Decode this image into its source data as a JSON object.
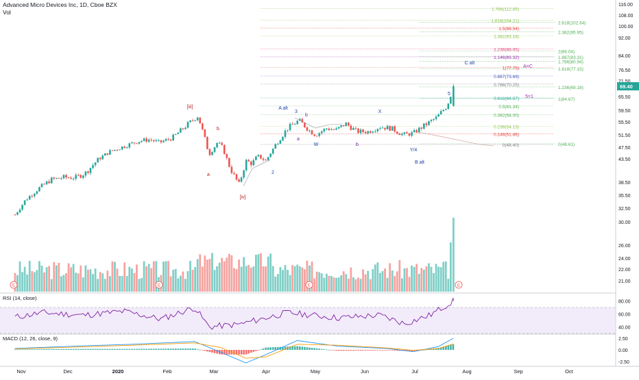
{
  "header": {
    "title": "Advanced Micro Devices Inc, 1D, Cboe BZX",
    "volume_label": "Vol"
  },
  "chart_data": [
    {
      "type": "candlestick",
      "panel": "price",
      "last_price": "69.40",
      "y_axis_ticks": [
        "116.00",
        "108.00",
        "100.00",
        "92.00",
        "84.00",
        "76.50",
        "71.50",
        "65.50",
        "59.50",
        "55.50",
        "51.50",
        "47.50",
        "43.50",
        "38.50",
        "35.50",
        "32.50"
      ],
      "x_axis_ticks": [
        "Nov",
        "Dec",
        "2020",
        "Feb",
        "Mar",
        "Apr",
        "May",
        "Jun",
        "Jul",
        "Aug",
        "Sep",
        "Oct"
      ],
      "price_path": [
        {
          "date": "Oct 28",
          "v": 31.0
        },
        {
          "date": "Nov 4",
          "v": 34.5
        },
        {
          "date": "Nov 12",
          "v": 37.0
        },
        {
          "date": "Nov 20",
          "v": 39.0
        },
        {
          "date": "Nov 28",
          "v": 39.5
        },
        {
          "date": "Dec 6",
          "v": 39.5
        },
        {
          "date": "Dec 12",
          "v": 40.5
        },
        {
          "date": "Dec 20",
          "v": 43.5
        },
        {
          "date": "Dec 27",
          "v": 46.0
        },
        {
          "date": "Jan 6",
          "v": 48.0
        },
        {
          "date": "Jan 14",
          "v": 49.5
        },
        {
          "date": "Jan 21",
          "v": 50.0
        },
        {
          "date": "Jan 27",
          "v": 49.0
        },
        {
          "date": "Feb 4",
          "v": 50.5
        },
        {
          "date": "Feb 12",
          "v": 54.0
        },
        {
          "date": "Feb 20",
          "v": 57.5
        },
        {
          "date": "Feb 24",
          "v": 51.0
        },
        {
          "date": "Feb 27",
          "v": 45.0
        },
        {
          "date": "Mar 3",
          "v": 49.0
        },
        {
          "date": "Mar 6",
          "v": 47.5
        },
        {
          "date": "Mar 9",
          "v": 43.0
        },
        {
          "date": "Mar 12",
          "v": 40.5
        },
        {
          "date": "Mar 16",
          "v": 38.0
        },
        {
          "date": "Mar 20",
          "v": 43.0
        },
        {
          "date": "Mar 24",
          "v": 42.5
        },
        {
          "date": "Mar 27",
          "v": 44.5
        },
        {
          "date": "Apr 1",
          "v": 43.0
        },
        {
          "date": "Apr 7",
          "v": 48.5
        },
        {
          "date": "Apr 14",
          "v": 53.5
        },
        {
          "date": "Apr 21",
          "v": 56.0
        },
        {
          "date": "Apr 27",
          "v": 53.0
        },
        {
          "date": "May 1",
          "v": 51.5
        },
        {
          "date": "May 8",
          "v": 53.5
        },
        {
          "date": "May 14",
          "v": 53.0
        },
        {
          "date": "May 20",
          "v": 55.0
        },
        {
          "date": "May 27",
          "v": 52.5
        },
        {
          "date": "Jun 3",
          "v": 52.5
        },
        {
          "date": "Jun 10",
          "v": 54.0
        },
        {
          "date": "Jun 17",
          "v": 53.5
        },
        {
          "date": "Jun 24",
          "v": 51.5
        },
        {
          "date": "Jun 30",
          "v": 52.0
        },
        {
          "date": "Jul 7",
          "v": 54.5
        },
        {
          "date": "Jul 14",
          "v": 57.0
        },
        {
          "date": "Jul 20",
          "v": 61.0
        },
        {
          "date": "Jul 24",
          "v": 69.4
        }
      ],
      "fib_levels": [
        {
          "label": "1.786(112.85)",
          "price": 112.85,
          "color": "#8bc34a"
        },
        {
          "label": "1.618(104.21)",
          "price": 104.21,
          "color": "#8bc34a"
        },
        {
          "label": "1.5(98.54)",
          "price": 98.54,
          "color": "#e53935"
        },
        {
          "label": "1.382(93.18)",
          "price": 93.18,
          "color": "#8bc34a"
        },
        {
          "label": "1.236(86.95)",
          "price": 86.95,
          "color": "#ec407a"
        },
        {
          "label": "1.146(83.32)",
          "price": 83.32,
          "color": "#9c27b0"
        },
        {
          "label": "1(77.75)",
          "price": 77.75,
          "color": "#e53935"
        },
        {
          "label": "0.887(73.69)",
          "price": 73.69,
          "color": "#3f51b5"
        },
        {
          "label": "0.786(70.25)",
          "price": 70.25,
          "color": "#787b86"
        },
        {
          "label": "0.618(64.87)",
          "price": 64.87,
          "color": "#26a69a"
        },
        {
          "label": "0.5(61.34)",
          "price": 61.34,
          "color": "#4caf50"
        },
        {
          "label": "0.382(58.00)",
          "price": 58.0,
          "color": "#4caf50"
        },
        {
          "label": "0.236(54.13)",
          "price": 54.13,
          "color": "#8bc34a"
        },
        {
          "label": "0.146(51.86)",
          "price": 51.86,
          "color": "#e53935"
        },
        {
          "label": "0(48.40)",
          "price": 48.4,
          "color": "#787b86"
        }
      ],
      "fib_extension": [
        {
          "label": "2.618(102.64)",
          "price": 102.64,
          "color": "#4caf50"
        },
        {
          "label": "2.382(95.95)",
          "price": 95.95,
          "color": "#4caf50"
        },
        {
          "label": "2(86.04)",
          "price": 86.04,
          "color": "#4caf50"
        },
        {
          "label": "1.887(83.31)",
          "price": 83.31,
          "color": "#4caf50"
        },
        {
          "label": "1.786(80.94)",
          "price": 80.94,
          "color": "#4caf50"
        },
        {
          "label": "1.618(77.15)",
          "price": 77.15,
          "color": "#4caf50"
        },
        {
          "label": "1.236(69.18)",
          "price": 69.18,
          "color": "#4caf50"
        },
        {
          "label": "1(64.67)",
          "price": 64.67,
          "color": "#4caf50"
        },
        {
          "label": "0(48.61)",
          "price": 48.61,
          "color": "#4caf50"
        }
      ],
      "wave_labels": [
        {
          "text": "[iii]",
          "color": "#b71c1c"
        },
        {
          "text": "b",
          "color": "#b71c1c"
        },
        {
          "text": "a",
          "color": "#b71c1c"
        },
        {
          "text": "[iv]",
          "color": "#b71c1c"
        },
        {
          "text": "2",
          "color": "#1e40af"
        },
        {
          "text": "A alt",
          "color": "#1e40af"
        },
        {
          "text": "3",
          "color": "#1e40af"
        },
        {
          "text": "b",
          "color": "#7b1fa2"
        },
        {
          "text": "a",
          "color": "#7b1fa2"
        },
        {
          "text": "W",
          "color": "#1e40af"
        },
        {
          "text": "X",
          "color": "#1e40af"
        },
        {
          "text": "b",
          "color": "#7b1fa2"
        },
        {
          "text": "Y/4",
          "color": "#1e40af"
        },
        {
          "text": "B alt",
          "color": "#1e40af"
        },
        {
          "text": "5",
          "color": "#1e40af"
        },
        {
          "text": "C alt",
          "color": "#1e40af"
        },
        {
          "text": "A=C",
          "color": "#9c27b0"
        },
        {
          "text": "5=1",
          "color": "#9c27b0"
        }
      ],
      "earnings_markers": [
        "E",
        "E",
        "E",
        "E"
      ]
    },
    {
      "type": "bar",
      "panel": "volume",
      "axis_ticks": [
        "30.00",
        "26.00",
        "24.00",
        "22.00",
        "21.00"
      ],
      "note": "volume bars colored by candle direction"
    },
    {
      "type": "line",
      "panel": "rsi",
      "label": "RSI (14, close)",
      "axis_ticks": [
        "80.00",
        "60.00",
        "40.00"
      ],
      "band": [
        30,
        70
      ],
      "rsi_path": [
        {
          "date": "Oct 28",
          "v": 55
        },
        {
          "date": "Nov 15",
          "v": 62
        },
        {
          "date": "Dec 10",
          "v": 58
        },
        {
          "date": "Jan 5",
          "v": 64
        },
        {
          "date": "Jan 28",
          "v": 52
        },
        {
          "date": "Feb 18",
          "v": 70
        },
        {
          "date": "Feb 27",
          "v": 40
        },
        {
          "date": "Mar 16",
          "v": 44
        },
        {
          "date": "Apr 14",
          "v": 62
        },
        {
          "date": "May 15",
          "v": 54
        },
        {
          "date": "Jun 10",
          "v": 58
        },
        {
          "date": "Jun 25",
          "v": 45
        },
        {
          "date": "Jul 10",
          "v": 58
        },
        {
          "date": "Jul 24",
          "v": 80
        }
      ]
    },
    {
      "type": "line",
      "panel": "macd",
      "label": "MACD (12, 26, close, 9)",
      "axis_ticks": [
        "2.50",
        "0.00",
        "-2.50"
      ],
      "macd_path": [
        {
          "date": "Oct 28",
          "v": 0.3
        },
        {
          "date": "Dec 5",
          "v": 0.8
        },
        {
          "date": "Jan 10",
          "v": 1.2
        },
        {
          "date": "Feb 18",
          "v": 1.8
        },
        {
          "date": "Mar 5",
          "v": -0.5
        },
        {
          "date": "Mar 20",
          "v": -2.8
        },
        {
          "date": "Apr 1",
          "v": -1.0
        },
        {
          "date": "Apr 20",
          "v": 2.0
        },
        {
          "date": "May 15",
          "v": 0.8
        },
        {
          "date": "Jun 15",
          "v": 0.3
        },
        {
          "date": "Jun 30",
          "v": -0.4
        },
        {
          "date": "Jul 15",
          "v": 0.7
        },
        {
          "date": "Jul 24",
          "v": 2.5
        }
      ],
      "signal_path": [
        {
          "date": "Oct 28",
          "v": 0.2
        },
        {
          "date": "Dec 5",
          "v": 0.6
        },
        {
          "date": "Jan 10",
          "v": 1.0
        },
        {
          "date": "Feb 18",
          "v": 1.5
        },
        {
          "date": "Mar 5",
          "v": 0.5
        },
        {
          "date": "Mar 20",
          "v": -1.8
        },
        {
          "date": "Apr 1",
          "v": -1.5
        },
        {
          "date": "Apr 20",
          "v": 1.2
        },
        {
          "date": "May 15",
          "v": 1.0
        },
        {
          "date": "Jun 15",
          "v": 0.4
        },
        {
          "date": "Jun 30",
          "v": -0.1
        },
        {
          "date": "Jul 15",
          "v": 0.3
        },
        {
          "date": "Jul 24",
          "v": 1.3
        }
      ]
    }
  ],
  "colors": {
    "up": "#26a69a",
    "down": "#ef5350",
    "up_volume": "#7fcfc7",
    "down_volume": "#f5a3a0",
    "rsi_line": "#7b1fa2",
    "rsi_band": "#e9ddf5",
    "macd_line": "#2196f3",
    "signal_line": "#ff9800",
    "last_price_bg": "#26a69a"
  }
}
